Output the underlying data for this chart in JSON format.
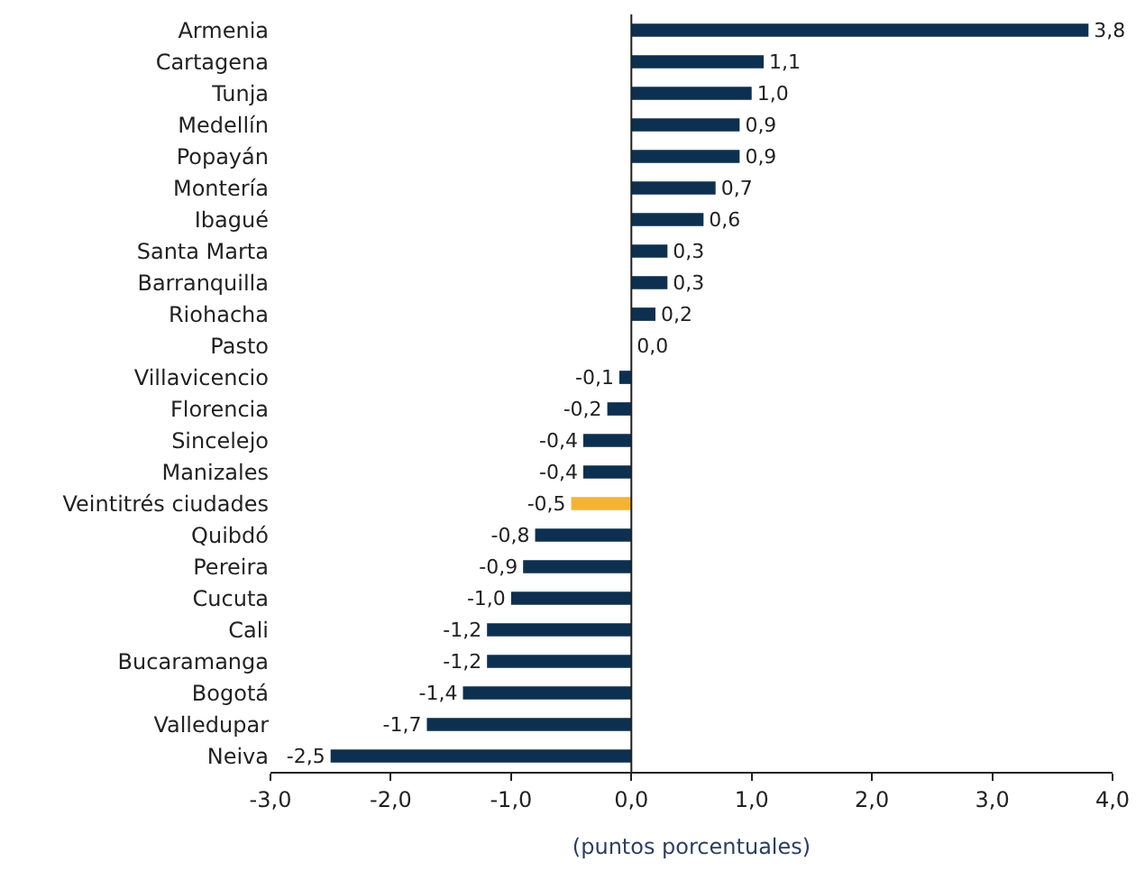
{
  "chart_data": {
    "type": "bar",
    "orientation": "horizontal",
    "xlabel": "(puntos porcentuales)",
    "categories": [
      "Armenia",
      "Cartagena",
      "Tunja",
      "Medellín",
      "Popayán",
      "Montería",
      "Ibagué",
      "Santa Marta",
      "Barranquilla",
      "Riohacha",
      "Pasto",
      "Villavicencio",
      "Florencia",
      "Sincelejo",
      "Manizales",
      "Veintitrés ciudades",
      "Quibdó",
      "Pereira",
      "Cucuta",
      "Cali",
      "Bucaramanga",
      "Bogotá",
      "Valledupar",
      "Neiva"
    ],
    "values": [
      3.8,
      1.1,
      1.0,
      0.9,
      0.9,
      0.7,
      0.6,
      0.3,
      0.3,
      0.2,
      0.0,
      -0.1,
      -0.2,
      -0.4,
      -0.4,
      -0.5,
      -0.8,
      -0.9,
      -1.0,
      -1.2,
      -1.2,
      -1.4,
      -1.7,
      -2.5
    ],
    "value_labels": [
      "3,8",
      "1,1",
      "1,0",
      "0,9",
      "0,9",
      "0,7",
      "0,6",
      "0,3",
      "0,3",
      "0,2",
      "0,0",
      "-0,1",
      "-0,2",
      "-0,4",
      "-0,4",
      "-0,5",
      "-0,8",
      "-0,9",
      "-1,0",
      "-1,2",
      "-1,2",
      "-1,4",
      "-1,7",
      "-2,5"
    ],
    "colors": [
      "#0d3050",
      "#0d3050",
      "#0d3050",
      "#0d3050",
      "#0d3050",
      "#0d3050",
      "#0d3050",
      "#0d3050",
      "#0d3050",
      "#0d3050",
      "#0d3050",
      "#0d3050",
      "#0d3050",
      "#0d3050",
      "#0d3050",
      "#f5b335",
      "#0d3050",
      "#0d3050",
      "#0d3050",
      "#0d3050",
      "#0d3050",
      "#0d3050",
      "#0d3050",
      "#0d3050"
    ],
    "xlim": [
      -3,
      4
    ],
    "xticks": [
      {
        "value": -3,
        "label": "-3,0"
      },
      {
        "value": -2,
        "label": "-2,0"
      },
      {
        "value": -1,
        "label": "-1,0"
      },
      {
        "value": 0,
        "label": "0,0"
      },
      {
        "value": 1,
        "label": "1,0"
      },
      {
        "value": 2,
        "label": "2,0"
      },
      {
        "value": 3,
        "label": "3,0"
      },
      {
        "value": 4,
        "label": "4,0"
      }
    ],
    "ref_lines": [
      {
        "axis": "x",
        "value": 0,
        "color": "#222222"
      }
    ],
    "legend": false
  }
}
